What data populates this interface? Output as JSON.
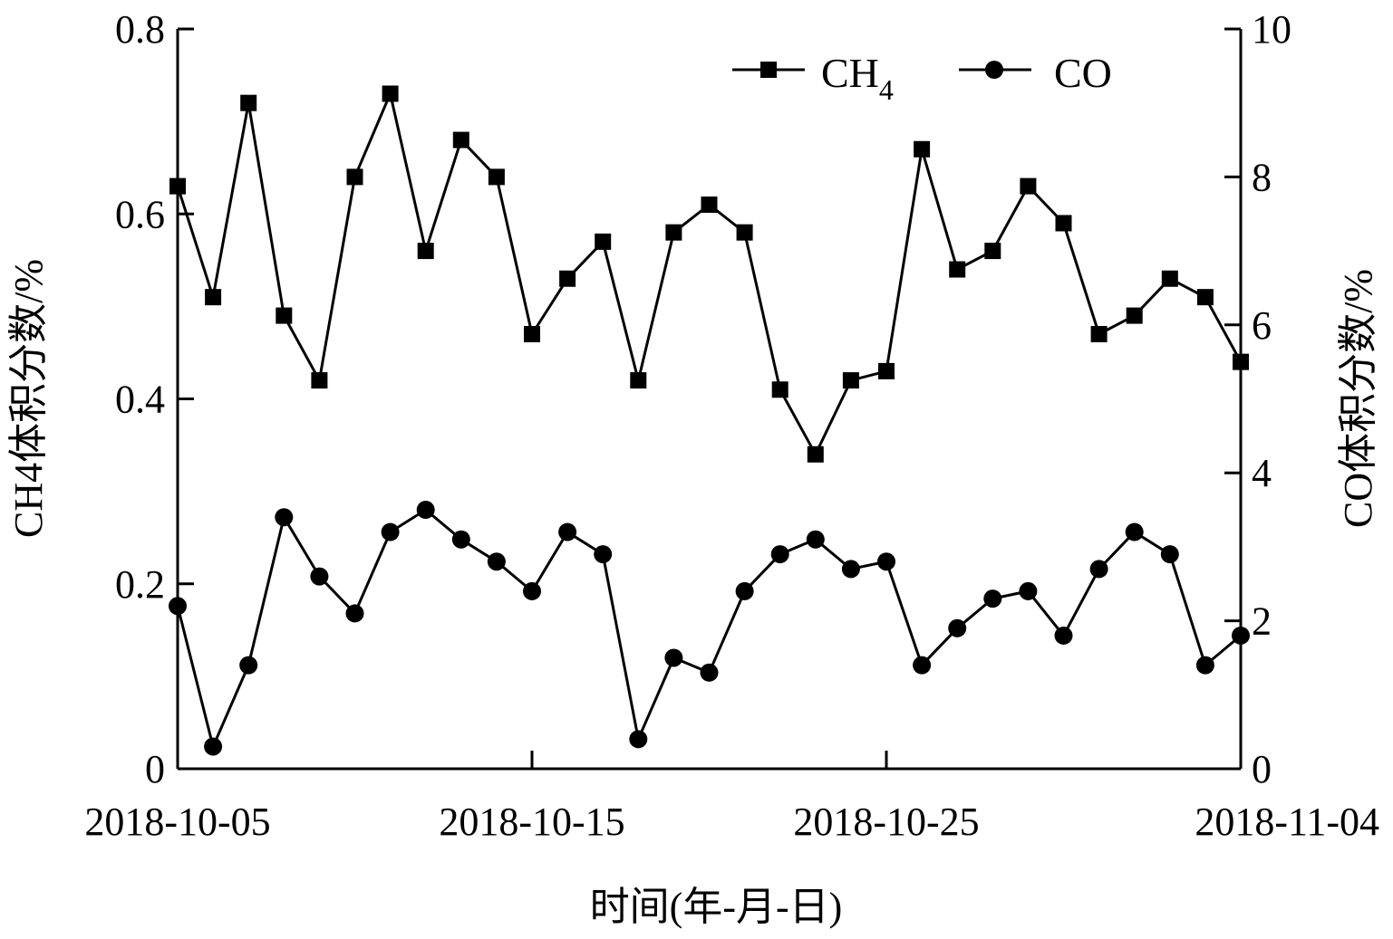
{
  "chart_data": {
    "type": "line",
    "x": [
      "2018-10-05",
      "2018-10-06",
      "2018-10-07",
      "2018-10-08",
      "2018-10-09",
      "2018-10-10",
      "2018-10-11",
      "2018-10-12",
      "2018-10-13",
      "2018-10-14",
      "2018-10-15",
      "2018-10-16",
      "2018-10-17",
      "2018-10-18",
      "2018-10-19",
      "2018-10-20",
      "2018-10-21",
      "2018-10-22",
      "2018-10-23",
      "2018-10-24",
      "2018-10-25",
      "2018-10-26",
      "2018-10-27",
      "2018-10-28",
      "2018-10-29",
      "2018-10-30",
      "2018-10-31",
      "2018-11-01",
      "2018-11-02",
      "2018-11-03",
      "2018-11-04"
    ],
    "series": [
      {
        "name": "CH",
        "name_subscript": "4",
        "axis": "left",
        "marker": "square",
        "values": [
          0.63,
          0.51,
          0.72,
          0.49,
          0.42,
          0.64,
          0.73,
          0.56,
          0.68,
          0.64,
          0.47,
          0.53,
          0.57,
          0.42,
          0.58,
          0.61,
          0.58,
          0.41,
          0.34,
          0.42,
          0.43,
          0.67,
          0.54,
          0.56,
          0.63,
          0.59,
          0.47,
          0.49,
          0.53,
          0.51,
          0.44
        ]
      },
      {
        "name": "CO",
        "axis": "right",
        "marker": "circle",
        "values": [
          2.2,
          0.3,
          1.4,
          3.4,
          2.6,
          2.1,
          3.2,
          3.5,
          3.1,
          2.8,
          2.4,
          3.2,
          2.9,
          0.4,
          1.5,
          1.3,
          2.4,
          2.9,
          3.1,
          2.7,
          2.8,
          1.4,
          1.9,
          2.3,
          2.4,
          1.8,
          2.7,
          3.2,
          2.9,
          1.4,
          1.8
        ]
      }
    ],
    "xticks": [
      "2018-10-05",
      "2018-10-15",
      "2018-10-25",
      "2018-11-04"
    ],
    "yticks_left": [
      "0",
      "0.2",
      "0.4",
      "0.6",
      "0.8"
    ],
    "yticks_right": [
      "0",
      "2",
      "4",
      "6",
      "8",
      "10"
    ],
    "ylim_left": [
      0,
      0.8
    ],
    "ylim_right": [
      0,
      10
    ],
    "xlabel": "时间(年-月-日)",
    "ylabel_left": "CH4体积分数/%",
    "ylabel_right": "CO体积分数/%",
    "legend_position": "top-right",
    "grid": false
  }
}
